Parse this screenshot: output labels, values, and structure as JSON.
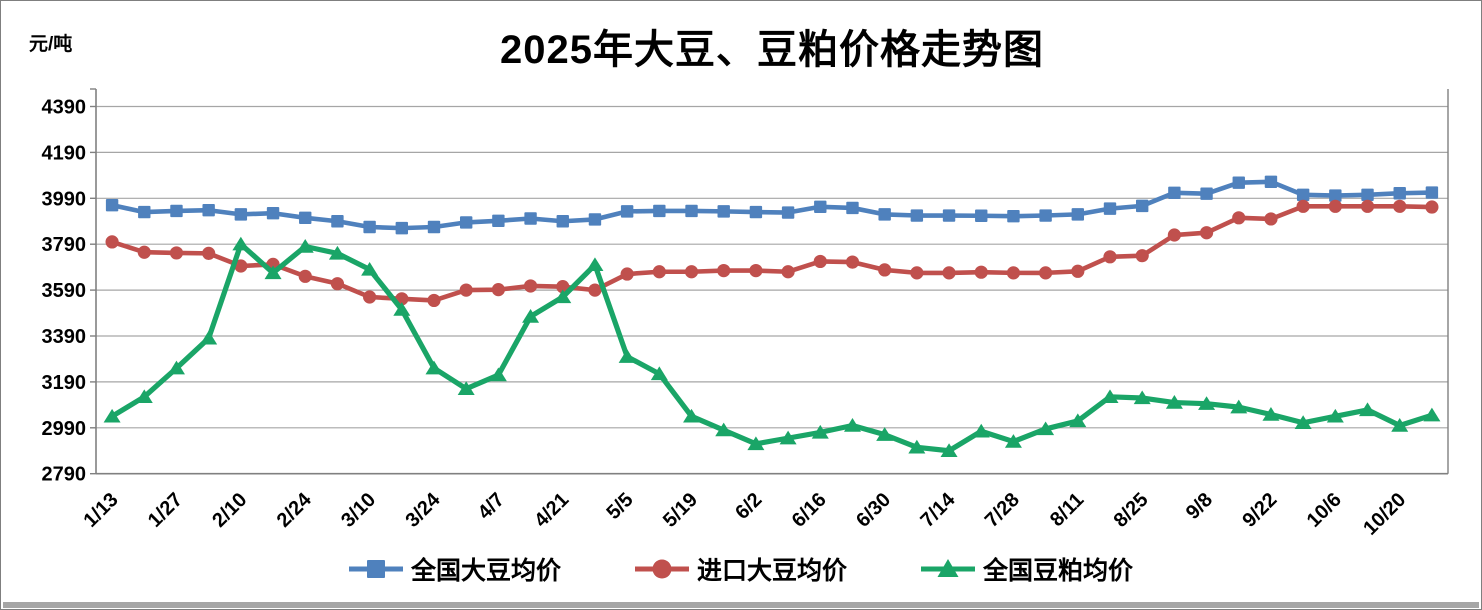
{
  "window": {
    "background": "#ffffff",
    "border_color": "#7f7f7f",
    "bottom_bar_color": "#a6a6a6"
  },
  "chart_data": {
    "type": "line",
    "title": "2025年大豆、豆粕价格走势图",
    "ylabel": "元/吨",
    "xlabel": "",
    "ylim": [
      2790,
      4390
    ],
    "ytick_interval": 200,
    "yticks": [
      4390,
      4190,
      3990,
      3790,
      3590,
      3390,
      3190,
      2990,
      2790
    ],
    "grid": "horizontal",
    "grid_color": "#a6a6a6",
    "axis_color": "#808080",
    "legend_position": "bottom",
    "x_labels_every": 2,
    "x": [
      "1/13",
      "1/20",
      "1/27",
      "2/3",
      "2/10",
      "2/17",
      "2/24",
      "3/3",
      "3/10",
      "3/17",
      "3/24",
      "3/31",
      "4/7",
      "4/14",
      "4/21",
      "4/28",
      "5/5",
      "5/12",
      "5/19",
      "5/26",
      "6/2",
      "6/9",
      "6/16",
      "6/23",
      "6/30",
      "7/7",
      "7/14",
      "7/21",
      "7/28",
      "8/4",
      "8/11",
      "8/18",
      "8/25",
      "9/1",
      "9/8",
      "9/15",
      "9/22",
      "9/29",
      "10/6",
      "10/13",
      "10/20",
      "10/27"
    ],
    "series": [
      {
        "name": "全国大豆均价",
        "color": "#4f81bd",
        "marker": "square",
        "values": [
          3960,
          3930,
          3935,
          3938,
          3920,
          3925,
          3905,
          3890,
          3865,
          3860,
          3865,
          3885,
          3892,
          3902,
          3890,
          3898,
          3933,
          3935,
          3935,
          3933,
          3930,
          3928,
          3953,
          3948,
          3920,
          3915,
          3915,
          3914,
          3912,
          3915,
          3920,
          3945,
          3957,
          4014,
          4010,
          4058,
          4062,
          4005,
          4002,
          4005,
          4012,
          4015
        ]
      },
      {
        "name": "进口大豆均价",
        "color": "#c0504d",
        "marker": "circle",
        "values": [
          3800,
          3755,
          3752,
          3750,
          3695,
          3702,
          3650,
          3618,
          3560,
          3552,
          3545,
          3590,
          3592,
          3608,
          3605,
          3590,
          3660,
          3670,
          3670,
          3675,
          3675,
          3670,
          3715,
          3712,
          3678,
          3665,
          3665,
          3668,
          3665,
          3665,
          3672,
          3735,
          3740,
          3830,
          3840,
          3905,
          3900,
          3955,
          3955,
          3955,
          3955,
          3952
        ]
      },
      {
        "name": "全国豆粕均价",
        "color": "#1aa567",
        "marker": "triangle",
        "values": [
          3040,
          3125,
          3250,
          3380,
          3790,
          3665,
          3780,
          3750,
          3680,
          3505,
          3250,
          3160,
          3220,
          3475,
          3560,
          3700,
          3300,
          3225,
          3040,
          2980,
          2920,
          2945,
          2970,
          3000,
          2960,
          2905,
          2890,
          2975,
          2930,
          2985,
          3020,
          3125,
          3120,
          3100,
          3095,
          3080,
          3048,
          3012,
          3040,
          3068,
          3000,
          3045
        ]
      }
    ]
  }
}
